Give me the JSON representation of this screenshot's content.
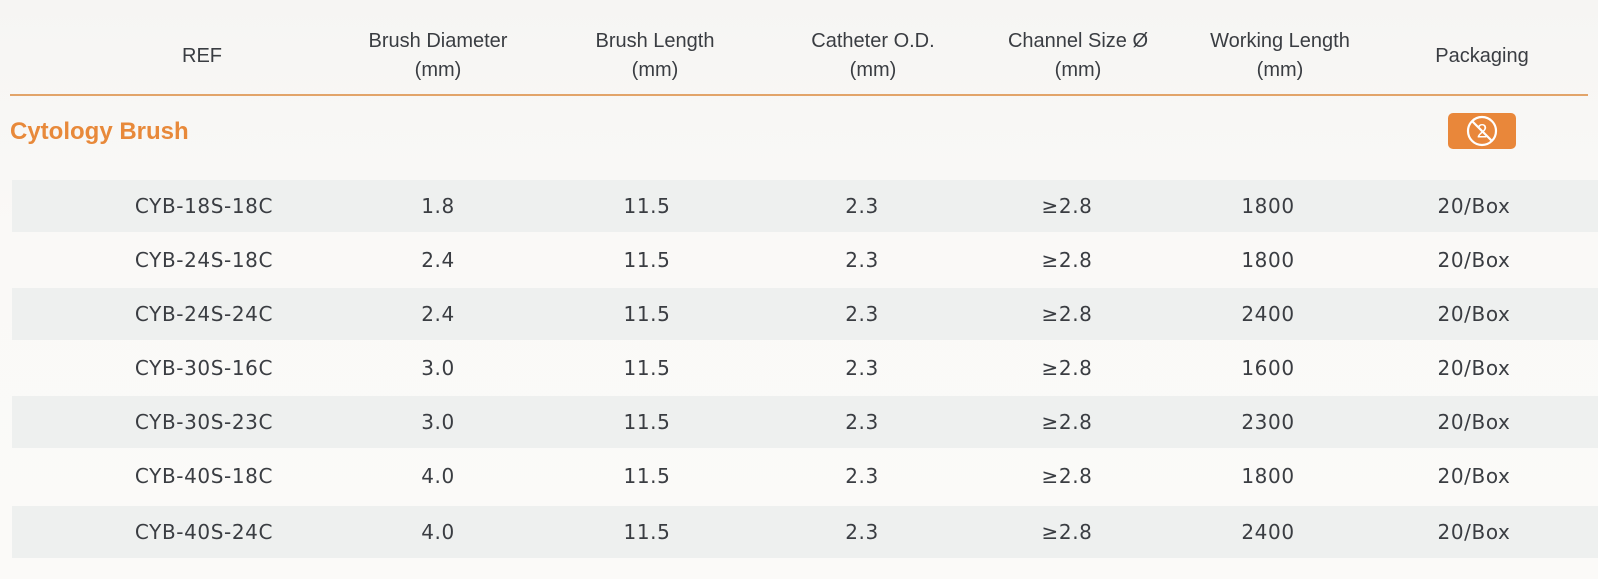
{
  "columns": [
    {
      "lines": [
        "REF"
      ]
    },
    {
      "lines": [
        "Brush Diameter",
        "(mm)"
      ]
    },
    {
      "lines": [
        "Brush Length",
        "(mm)"
      ]
    },
    {
      "lines": [
        "Catheter O.D.",
        "(mm)"
      ]
    },
    {
      "lines": [
        "Channel Size Ø",
        "(mm)"
      ]
    },
    {
      "lines": [
        "Working Length",
        "(mm)"
      ]
    },
    {
      "lines": [
        "Packaging"
      ]
    }
  ],
  "section": {
    "title": "Cytology Brush",
    "packaging_icon": "do-not-reuse-icon",
    "accent_color": "#e8893a"
  },
  "rows": [
    [
      "CYB-18S-18C",
      "1.8",
      "11.5",
      "2.3",
      "≥2.8",
      "1800",
      "20/Box"
    ],
    [
      "CYB-24S-18C",
      "2.4",
      "11.5",
      "2.3",
      "≥2.8",
      "1800",
      "20/Box"
    ],
    [
      "CYB-24S-24C",
      "2.4",
      "11.5",
      "2.3",
      "≥2.8",
      "2400",
      "20/Box"
    ],
    [
      "CYB-30S-16C",
      "3.0",
      "11.5",
      "2.3",
      "≥2.8",
      "1600",
      "20/Box"
    ],
    [
      "CYB-30S-23C",
      "3.0",
      "11.5",
      "2.3",
      "≥2.8",
      "2300",
      "20/Box"
    ],
    [
      "CYB-40S-18C",
      "4.0",
      "11.5",
      "2.3",
      "≥2.8",
      "1800",
      "20/Box"
    ],
    [
      "CYB-40S-24C",
      "4.0",
      "11.5",
      "2.3",
      "≥2.8",
      "2400",
      "20/Box"
    ]
  ]
}
